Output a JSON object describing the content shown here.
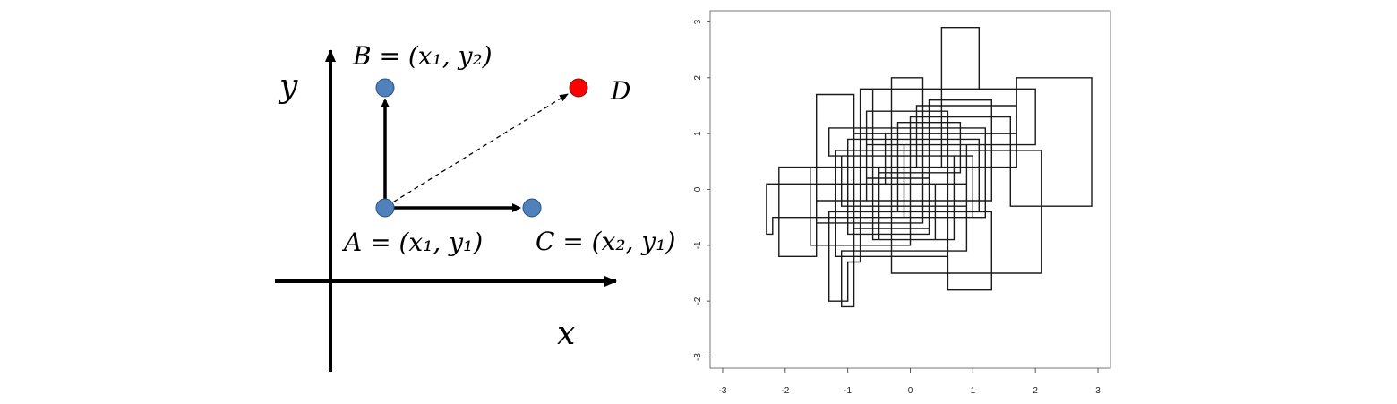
{
  "left_diagram": {
    "axis_x_label": "x",
    "axis_y_label": "y",
    "points": {
      "A": {
        "label": "A = (x₁, y₁)",
        "color": "#4f81bd"
      },
      "B": {
        "label": "B = (x₁, y₂)",
        "color": "#4f81bd"
      },
      "C": {
        "label": "C = (x₂, y₁)",
        "color": "#4f81bd"
      },
      "D": {
        "label": "D",
        "color": "#ff0000"
      }
    }
  },
  "right_plot": {
    "x_ticks": [
      "-3",
      "-2",
      "-1",
      "0",
      "1",
      "2",
      "3"
    ],
    "y_ticks": [
      "-3",
      "-2",
      "-1",
      "0",
      "1",
      "2",
      "3"
    ],
    "xlim": [
      -3.2,
      3.2
    ],
    "ylim": [
      -3.2,
      3.2
    ],
    "path": [
      [
        -0.5,
        0.3
      ],
      [
        0.8,
        0.3
      ],
      [
        0.8,
        1.2
      ],
      [
        -0.2,
        1.2
      ],
      [
        -0.2,
        -0.4
      ],
      [
        1.1,
        -0.4
      ],
      [
        1.1,
        0.9
      ],
      [
        -1.0,
        0.9
      ],
      [
        -1.0,
        -0.8
      ],
      [
        0.3,
        -0.8
      ],
      [
        0.3,
        1.6
      ],
      [
        1.3,
        1.6
      ],
      [
        1.3,
        -0.2
      ],
      [
        -0.7,
        -0.2
      ],
      [
        -0.7,
        1.4
      ],
      [
        0.6,
        1.4
      ],
      [
        0.6,
        -1.2
      ],
      [
        -1.2,
        -1.2
      ],
      [
        -1.2,
        0.7
      ],
      [
        2.1,
        0.7
      ],
      [
        2.1,
        -1.5
      ],
      [
        -0.3,
        -1.5
      ],
      [
        -0.3,
        2.0
      ],
      [
        0.2,
        2.0
      ],
      [
        0.2,
        -0.6
      ],
      [
        -1.5,
        -0.6
      ],
      [
        -1.5,
        1.7
      ],
      [
        -0.9,
        1.7
      ],
      [
        -0.9,
        -2.1
      ],
      [
        -1.1,
        -2.1
      ],
      [
        -1.1,
        -1.1
      ],
      [
        0.9,
        -1.1
      ],
      [
        0.9,
        0.1
      ],
      [
        -0.4,
        0.1
      ],
      [
        -0.4,
        1.0
      ],
      [
        1.7,
        1.0
      ],
      [
        1.7,
        2.0
      ],
      [
        2.9,
        2.0
      ],
      [
        2.9,
        -0.3
      ],
      [
        1.6,
        -0.3
      ],
      [
        1.6,
        1.3
      ],
      [
        0.0,
        1.3
      ],
      [
        0.0,
        -1.0
      ],
      [
        -1.6,
        -1.0
      ],
      [
        -1.6,
        0.4
      ],
      [
        0.5,
        0.4
      ],
      [
        0.5,
        2.9
      ],
      [
        1.1,
        2.9
      ],
      [
        1.1,
        1.8
      ],
      [
        -0.6,
        1.8
      ],
      [
        -0.6,
        -0.9
      ],
      [
        0.7,
        -0.9
      ],
      [
        0.7,
        0.6
      ],
      [
        -1.3,
        0.6
      ],
      [
        -1.3,
        1.1
      ],
      [
        1.2,
        1.1
      ],
      [
        1.2,
        -0.5
      ],
      [
        -0.1,
        -0.5
      ],
      [
        -0.1,
        0.8
      ],
      [
        2.0,
        0.8
      ],
      [
        2.0,
        1.8
      ],
      [
        -0.8,
        1.8
      ],
      [
        -0.8,
        -1.3
      ],
      [
        -1.0,
        -1.3
      ],
      [
        -1.0,
        -2.0
      ],
      [
        -1.3,
        -2.0
      ],
      [
        -1.3,
        -0.4
      ],
      [
        1.3,
        -0.4
      ],
      [
        1.3,
        -1.8
      ],
      [
        0.6,
        -1.8
      ],
      [
        0.6,
        -0.2
      ],
      [
        -1.5,
        -0.2
      ],
      [
        -1.5,
        -1.2
      ],
      [
        -2.1,
        -1.2
      ],
      [
        -2.1,
        0.4
      ],
      [
        0.1,
        0.4
      ],
      [
        0.1,
        1.5
      ],
      [
        1.7,
        1.5
      ],
      [
        1.7,
        0.4
      ],
      [
        -0.5,
        0.4
      ],
      [
        -0.5,
        -0.9
      ],
      [
        0.4,
        -0.9
      ],
      [
        0.4,
        0.1
      ],
      [
        -2.3,
        0.1
      ],
      [
        -2.3,
        -0.8
      ],
      [
        -2.2,
        -0.8
      ],
      [
        -2.2,
        -0.5
      ],
      [
        1.0,
        -0.5
      ],
      [
        1.0,
        0.6
      ],
      [
        -1.1,
        0.6
      ],
      [
        -1.1,
        -0.3
      ],
      [
        0.9,
        -0.3
      ],
      [
        0.9,
        0.8
      ],
      [
        -0.7,
        0.8
      ],
      [
        -0.7,
        0.2
      ],
      [
        0.3,
        0.2
      ],
      [
        0.3,
        -0.7
      ],
      [
        -0.9,
        -0.7
      ],
      [
        -0.9,
        1.0
      ],
      [
        0.2,
        1.0
      ],
      [
        0.2,
        0.3
      ],
      [
        0.8,
        0.3
      ]
    ],
    "line_color": "#1a1a1a"
  }
}
